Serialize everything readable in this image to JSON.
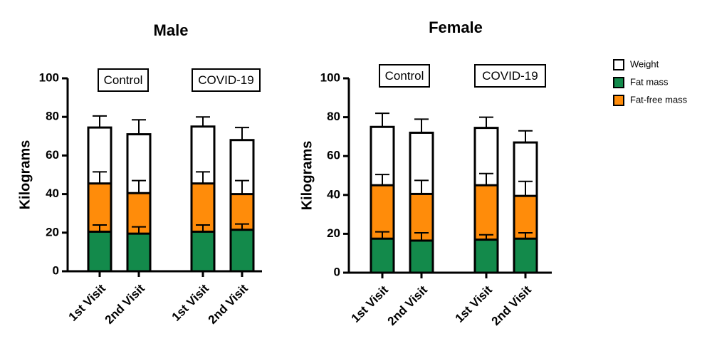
{
  "legend": [
    {
      "name": "Weight",
      "color": "#ffffff"
    },
    {
      "name": "Fat mass",
      "color": "#138a4b"
    },
    {
      "name": "Fat-free mass",
      "color": "#ff8c0a"
    }
  ],
  "chart_data": [
    {
      "type": "bar",
      "title": "Male",
      "y_label": "Kilograms",
      "groups": [
        "Control",
        "COVID-19"
      ],
      "categories": [
        "1st Visit",
        "2nd Visit",
        "1st Visit",
        "2nd Visit"
      ],
      "ylim": [
        0,
        100
      ],
      "yticks": [
        0,
        20,
        40,
        60,
        80,
        100
      ],
      "series": [
        {
          "color": "#ffffff",
          "values": [
            74.5,
            71,
            75,
            68
          ],
          "errors": [
            6,
            7.5,
            5,
            6.5
          ]
        },
        {
          "color": "#ff8c0a",
          "values": [
            45.5,
            40.5,
            45.5,
            40
          ],
          "errors": [
            6,
            6.5,
            6,
            7
          ]
        },
        {
          "color": "#138a4b",
          "values": [
            20.5,
            19.5,
            20.5,
            21.5
          ],
          "errors": [
            3.5,
            3.5,
            3.5,
            3
          ]
        }
      ]
    },
    {
      "type": "bar",
      "title": "Female",
      "y_label": "Kilograms",
      "groups": [
        "Control",
        "COVID-19"
      ],
      "categories": [
        "1st Visit",
        "2nd Visit",
        "1st Visit",
        "2nd Visit"
      ],
      "ylim": [
        0,
        100
      ],
      "yticks": [
        0,
        20,
        40,
        60,
        80,
        100
      ],
      "series": [
        {
          "color": "#ffffff",
          "values": [
            75,
            72,
            74.5,
            67
          ],
          "errors": [
            7,
            7,
            5.5,
            6
          ]
        },
        {
          "color": "#ff8c0a",
          "values": [
            45,
            40.5,
            45,
            39.5
          ],
          "errors": [
            5.5,
            7,
            6,
            7.5
          ]
        },
        {
          "color": "#138a4b",
          "values": [
            17.5,
            16.5,
            17,
            17.5
          ],
          "errors": [
            3.5,
            4,
            2.5,
            3
          ]
        }
      ]
    }
  ]
}
